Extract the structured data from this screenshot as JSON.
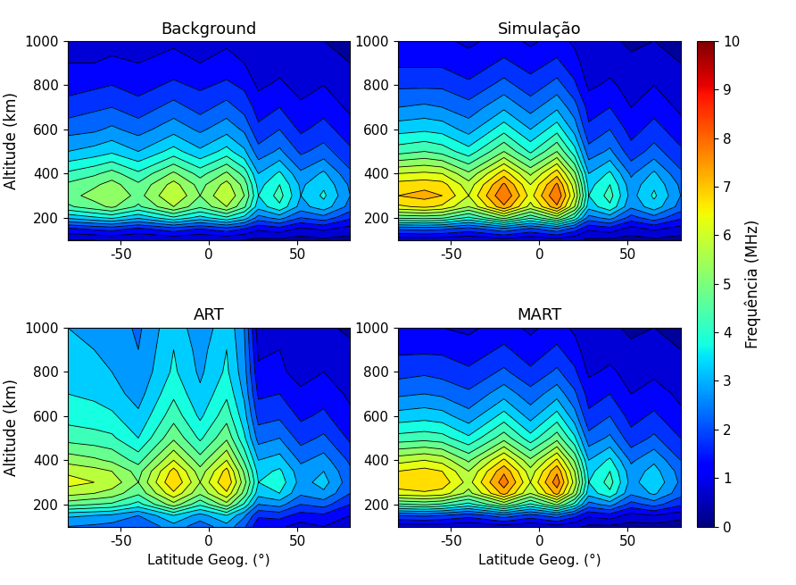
{
  "chart_data": [
    {
      "type": "contour",
      "title": "Background",
      "ylabel": "Altitude (km)",
      "x": [
        -80,
        -65,
        -55,
        -40,
        -20,
        -5,
        10,
        20,
        28,
        40,
        52,
        65,
        80
      ],
      "y": [
        100,
        150,
        200,
        250,
        300,
        350,
        400,
        500,
        600,
        700,
        800,
        900,
        1000
      ],
      "values": [
        [
          0.5,
          0.5,
          0.6,
          0.5,
          0.6,
          0.5,
          0.6,
          0.5,
          0.4,
          0.4,
          0.3,
          0.4,
          0.3
        ],
        [
          1.4,
          1.6,
          1.7,
          1.4,
          1.8,
          1.5,
          1.8,
          1.5,
          1.1,
          1.3,
          0.9,
          1.1,
          0.8
        ],
        [
          3.1,
          3.4,
          3.6,
          3.1,
          3.9,
          3.3,
          3.9,
          3.3,
          2.3,
          2.7,
          2.0,
          2.3,
          1.6
        ],
        [
          4.4,
          4.8,
          5.1,
          4.4,
          5.5,
          4.6,
          5.5,
          4.6,
          3.2,
          3.9,
          2.8,
          3.3,
          2.3
        ],
        [
          4.8,
          5.2,
          5.5,
          4.8,
          6.0,
          5.0,
          6.0,
          5.0,
          3.5,
          4.2,
          3.0,
          3.6,
          2.5
        ],
        [
          4.6,
          4.9,
          5.2,
          4.6,
          5.7,
          4.8,
          5.7,
          4.8,
          3.3,
          4.0,
          2.9,
          3.4,
          2.4
        ],
        [
          4.1,
          4.4,
          4.7,
          4.1,
          5.1,
          4.3,
          5.1,
          4.3,
          3.0,
          3.6,
          2.6,
          3.1,
          2.1
        ],
        [
          3.0,
          3.2,
          3.4,
          3.0,
          3.7,
          3.1,
          3.7,
          3.1,
          2.2,
          2.6,
          1.9,
          2.2,
          1.6
        ],
        [
          2.3,
          2.4,
          2.6,
          2.3,
          2.8,
          2.4,
          2.8,
          2.4,
          1.6,
          2.0,
          1.4,
          1.7,
          1.2
        ],
        [
          1.7,
          1.9,
          2.0,
          1.7,
          2.2,
          1.8,
          2.2,
          1.8,
          1.3,
          1.5,
          1.1,
          1.3,
          0.9
        ],
        [
          1.3,
          1.4,
          1.5,
          1.3,
          1.6,
          1.4,
          1.6,
          1.4,
          0.9,
          1.1,
          0.8,
          1.0,
          0.7
        ],
        [
          1.0,
          1.0,
          1.1,
          1.0,
          1.2,
          1.0,
          1.2,
          1.0,
          0.7,
          0.8,
          0.6,
          0.7,
          0.5
        ],
        [
          0.7,
          0.8,
          0.8,
          0.7,
          0.9,
          0.8,
          0.9,
          0.8,
          0.5,
          0.6,
          0.5,
          0.5,
          0.4
        ]
      ],
      "xlim": [
        -80,
        80
      ],
      "ylim": [
        100,
        1000
      ],
      "xticks": [
        -50,
        0,
        50
      ],
      "yticks": [
        200,
        400,
        600,
        800,
        1000
      ]
    },
    {
      "type": "contour",
      "title": "Simulação",
      "x": [
        -80,
        -65,
        -55,
        -40,
        -20,
        -5,
        10,
        20,
        28,
        40,
        52,
        65,
        80
      ],
      "y": [
        100,
        150,
        200,
        250,
        300,
        350,
        400,
        500,
        600,
        700,
        800,
        900,
        1000
      ],
      "values": [
        [
          0.7,
          0.7,
          0.7,
          0.6,
          0.8,
          0.6,
          0.8,
          0.6,
          0.4,
          0.4,
          0.3,
          0.4,
          0.3
        ],
        [
          2.1,
          2.2,
          2.1,
          1.8,
          2.4,
          1.9,
          2.4,
          1.8,
          1.1,
          1.3,
          0.8,
          1.1,
          0.8
        ],
        [
          4.6,
          4.7,
          4.6,
          3.9,
          5.2,
          4.1,
          5.2,
          3.9,
          2.3,
          2.7,
          1.8,
          2.3,
          1.6
        ],
        [
          6.4,
          6.6,
          6.4,
          5.5,
          7.4,
          5.8,
          7.4,
          5.5,
          3.2,
          3.9,
          2.6,
          3.3,
          2.3
        ],
        [
          7.0,
          7.2,
          7.0,
          6.0,
          8.0,
          6.3,
          8.0,
          6.0,
          3.5,
          4.2,
          2.8,
          3.6,
          2.5
        ],
        [
          6.7,
          6.8,
          6.7,
          5.7,
          7.6,
          6.0,
          7.6,
          5.7,
          3.3,
          4.0,
          2.7,
          3.4,
          2.4
        ],
        [
          6.0,
          6.1,
          6.0,
          5.1,
          6.8,
          5.4,
          6.8,
          5.1,
          3.0,
          3.6,
          2.4,
          3.1,
          2.1
        ],
        [
          4.3,
          4.5,
          4.3,
          3.7,
          5.0,
          3.9,
          5.0,
          3.7,
          2.2,
          2.6,
          1.7,
          2.2,
          1.6
        ],
        [
          3.3,
          3.4,
          3.3,
          2.8,
          3.8,
          3.0,
          3.8,
          2.8,
          1.6,
          2.0,
          1.3,
          1.7,
          1.2
        ],
        [
          2.5,
          2.6,
          2.5,
          2.2,
          2.9,
          2.3,
          2.9,
          2.2,
          1.3,
          1.5,
          1.0,
          1.3,
          0.9
        ],
        [
          1.9,
          1.9,
          1.9,
          1.6,
          2.2,
          1.7,
          2.2,
          1.6,
          0.9,
          1.1,
          0.8,
          1.0,
          0.7
        ],
        [
          1.4,
          1.4,
          1.4,
          1.2,
          1.6,
          1.3,
          1.6,
          1.2,
          0.7,
          0.8,
          0.6,
          0.7,
          0.5
        ],
        [
          1.1,
          1.1,
          1.1,
          0.9,
          1.2,
          0.9,
          1.2,
          0.9,
          0.5,
          0.6,
          0.4,
          0.5,
          0.4
        ]
      ],
      "xlim": [
        -80,
        80
      ],
      "ylim": [
        100,
        1000
      ],
      "xticks": [
        -50,
        0,
        50
      ],
      "yticks": [
        200,
        400,
        600,
        800,
        1000
      ],
      "colorbar": {
        "label": "Frequência (MHz)",
        "range": [
          0,
          10
        ],
        "ticks": [
          0,
          1,
          2,
          3,
          4,
          5,
          6,
          7,
          8,
          9,
          10
        ],
        "levels": [
          0,
          0.5,
          1,
          1.5,
          2,
          2.5,
          3,
          3.5,
          4,
          4.5,
          5,
          5.5,
          6,
          6.5,
          7,
          7.5,
          8,
          8.5,
          9,
          9.5,
          10
        ]
      }
    },
    {
      "type": "contour",
      "title": "ART",
      "ylabel": "Altitude (km)",
      "xlabel": "Latitude Geog. (°)",
      "x": [
        -80,
        -65,
        -55,
        -40,
        -20,
        -5,
        10,
        20,
        28,
        40,
        52,
        65,
        80
      ],
      "y": [
        100,
        150,
        200,
        250,
        300,
        350,
        400,
        500,
        600,
        700,
        800,
        900,
        1000
      ],
      "values": [
        [
          2.5,
          2.4,
          2.3,
          2.0,
          2.8,
          2.2,
          2.8,
          2.1,
          1.1,
          1.1,
          0.8,
          1.0,
          0.7
        ],
        [
          3.1,
          3.0,
          2.9,
          2.5,
          3.5,
          2.8,
          3.5,
          2.6,
          1.6,
          1.7,
          1.3,
          1.4,
          1.0
        ],
        [
          4.7,
          4.5,
          4.4,
          3.8,
          5.3,
          4.1,
          5.3,
          3.9,
          2.5,
          2.7,
          2.0,
          2.2,
          1.5
        ],
        [
          5.7,
          5.5,
          5.3,
          4.6,
          6.4,
          5.1,
          6.4,
          4.8,
          3.2,
          3.5,
          2.6,
          2.9,
          2.0
        ],
        [
          6.2,
          6.0,
          5.8,
          5.0,
          7.0,
          5.5,
          7.0,
          5.2,
          3.5,
          3.8,
          2.8,
          3.2,
          2.2
        ],
        [
          5.9,
          5.7,
          5.5,
          4.8,
          6.7,
          5.2,
          6.7,
          4.9,
          3.3,
          3.6,
          2.7,
          3.0,
          2.1
        ],
        [
          5.3,
          5.1,
          4.9,
          4.3,
          6.0,
          4.7,
          6.0,
          4.4,
          3.0,
          3.2,
          2.4,
          2.7,
          1.9
        ],
        [
          4.3,
          4.2,
          4.1,
          3.5,
          4.9,
          3.9,
          4.9,
          3.6,
          2.3,
          2.5,
          1.8,
          2.1,
          1.4
        ],
        [
          3.8,
          3.7,
          3.6,
          3.1,
          4.3,
          3.4,
          4.3,
          3.2,
          1.8,
          1.9,
          1.4,
          1.6,
          1.1
        ],
        [
          3.5,
          3.4,
          3.2,
          2.8,
          3.9,
          3.1,
          3.9,
          2.9,
          1.4,
          1.5,
          1.1,
          1.3,
          0.9
        ],
        [
          3.2,
          3.1,
          3.0,
          2.6,
          3.6,
          2.9,
          3.6,
          2.7,
          1.1,
          1.1,
          0.8,
          1.0,
          0.7
        ],
        [
          3.1,
          3.0,
          2.9,
          2.5,
          3.5,
          2.8,
          3.5,
          2.6,
          0.9,
          1.0,
          0.7,
          0.8,
          0.6
        ],
        [
          3.0,
          2.9,
          2.8,
          2.4,
          3.4,
          2.6,
          3.4,
          2.5,
          0.7,
          0.8,
          0.6,
          0.6,
          0.4
        ]
      ],
      "xlim": [
        -80,
        80
      ],
      "ylim": [
        100,
        1000
      ],
      "xticks": [
        -50,
        0,
        50
      ],
      "yticks": [
        200,
        400,
        600,
        800,
        1000
      ]
    },
    {
      "type": "contour",
      "title": "MART",
      "xlabel": "Latitude Geog. (°)",
      "x": [
        -80,
        -65,
        -55,
        -40,
        -20,
        -5,
        10,
        20,
        28,
        40,
        52,
        65,
        80
      ],
      "y": [
        100,
        150,
        200,
        250,
        300,
        350,
        400,
        500,
        600,
        700,
        800,
        900,
        1000
      ],
      "values": [
        [
          0.7,
          0.7,
          0.7,
          0.6,
          0.8,
          0.6,
          0.8,
          0.6,
          0.4,
          0.4,
          0.3,
          0.3,
          0.2
        ],
        [
          2.0,
          2.1,
          2.0,
          1.7,
          2.3,
          1.8,
          2.3,
          1.7,
          1.1,
          1.3,
          0.8,
          1.0,
          0.7
        ],
        [
          4.4,
          4.6,
          4.4,
          3.8,
          5.1,
          3.9,
          5.1,
          3.8,
          2.3,
          2.7,
          1.8,
          2.2,
          1.6
        ],
        [
          6.3,
          6.4,
          6.3,
          5.3,
          7.2,
          5.5,
          7.2,
          5.3,
          3.2,
          3.9,
          2.6,
          3.1,
          2.2
        ],
        [
          6.8,
          7.0,
          6.8,
          5.8,
          7.8,
          6.0,
          7.8,
          5.8,
          3.5,
          4.2,
          2.8,
          3.4,
          2.4
        ],
        [
          6.5,
          6.7,
          6.5,
          5.5,
          7.4,
          5.7,
          7.4,
          5.5,
          3.3,
          4.0,
          2.7,
          3.2,
          2.3
        ],
        [
          5.8,
          6.0,
          5.8,
          4.9,
          6.6,
          5.1,
          6.6,
          4.9,
          3.0,
          3.6,
          2.4,
          2.9,
          2.0
        ],
        [
          4.2,
          4.3,
          4.2,
          3.6,
          4.8,
          3.7,
          4.8,
          3.6,
          2.2,
          2.6,
          1.7,
          2.1,
          1.5
        ],
        [
          3.2,
          3.3,
          3.2,
          2.7,
          3.7,
          2.8,
          3.7,
          2.7,
          1.6,
          2.0,
          1.3,
          1.6,
          1.1
        ],
        [
          2.4,
          2.5,
          2.4,
          2.1,
          2.8,
          2.2,
          2.8,
          2.1,
          1.3,
          1.5,
          1.0,
          1.2,
          0.9
        ],
        [
          1.8,
          1.9,
          1.8,
          1.6,
          2.1,
          1.6,
          2.1,
          1.6,
          0.9,
          1.1,
          0.8,
          0.9,
          0.6
        ],
        [
          1.4,
          1.4,
          1.4,
          1.2,
          1.6,
          1.2,
          1.6,
          1.2,
          0.7,
          0.8,
          0.6,
          0.7,
          0.5
        ],
        [
          1.0,
          1.1,
          1.0,
          0.9,
          1.2,
          0.9,
          1.2,
          0.9,
          0.5,
          0.6,
          0.4,
          0.5,
          0.4
        ]
      ],
      "xlim": [
        -80,
        80
      ],
      "ylim": [
        100,
        1000
      ],
      "xticks": [
        -50,
        0,
        50
      ],
      "yticks": [
        200,
        400,
        600,
        800,
        1000
      ]
    }
  ]
}
